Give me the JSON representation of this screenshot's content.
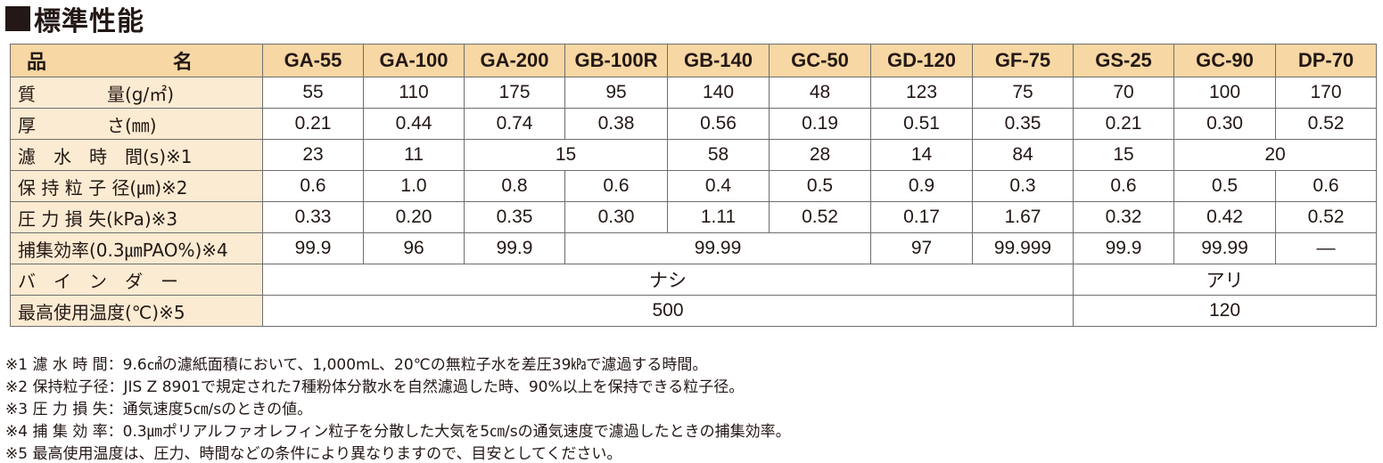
{
  "title": "標準性能",
  "table": {
    "header": {
      "label": "品　名",
      "products": [
        "GA-55",
        "GA-100",
        "GA-200",
        "GB-100R",
        "GB-140",
        "GC-50",
        "GD-120",
        "GF-75",
        "GS-25",
        "GC-90",
        "DP-70"
      ]
    },
    "rows": {
      "mass": {
        "label": "質　　　　量(g/㎡)",
        "cells": [
          "55",
          "110",
          "175",
          "95",
          "140",
          "48",
          "123",
          "75",
          "70",
          "100",
          "170"
        ]
      },
      "thickness": {
        "label": "厚　　　　さ(㎜)",
        "cells": [
          "0.21",
          "0.44",
          "0.74",
          "0.38",
          "0.56",
          "0.19",
          "0.51",
          "0.35",
          "0.21",
          "0.30",
          "0.52"
        ]
      },
      "filtration_time": {
        "label": "濾　水　時　間(s)※1",
        "cells": [
          "23",
          "11",
          "15",
          "58",
          "28",
          "14",
          "84",
          "15",
          "20"
        ]
      },
      "retention": {
        "label": "保 持 粒 子 径(㎛)※2",
        "cells": [
          "0.6",
          "1.0",
          "0.8",
          "0.6",
          "0.4",
          "0.5",
          "0.9",
          "0.3",
          "0.6",
          "0.5",
          "0.6"
        ]
      },
      "pressure_loss": {
        "label": "圧 力 損 失(kPa)※3",
        "cells": [
          "0.33",
          "0.20",
          "0.35",
          "0.30",
          "1.11",
          "0.52",
          "0.17",
          "1.67",
          "0.32",
          "0.42",
          "0.52"
        ]
      },
      "efficiency": {
        "label": "捕集効率(0.3㎛PAO%)※4",
        "cells": [
          "99.9",
          "96",
          "99.9",
          "99.99",
          "97",
          "99.999",
          "99.9",
          "99.99",
          "—"
        ]
      },
      "binder": {
        "label": "バ　イ　ン　ダ　ー",
        "cells": [
          "ナシ",
          "アリ"
        ]
      },
      "max_temp": {
        "label": "最高使用温度(℃)※5",
        "cells": [
          "500",
          "120"
        ]
      }
    }
  },
  "notes": [
    "※1 濾 水 時 間：9.6㎠の濾紙面積において、1,000mL、20℃の無粒子水を差圧39㎪で濾過する時間。",
    "※2 保持粒子径：JIS Z 8901で規定された7種粉体分散水を自然濾過した時、90%以上を保持できる粒子径。",
    "※3 圧 力 損 失：通気速度5㎝/sのときの値。",
    "※4 捕 集 効 率：0.3㎛ポリアルファオレフィン粒子を分散した大気を5㎝/sの通気速度で濾過したときの捕集効率。",
    "※5 最高使用温度は、圧力、時間などの条件により異なりますので、目安としてください。"
  ],
  "colors": {
    "header_bg": "#f7d7a3",
    "label_bg": "#fbebd2",
    "border": "#6e6e6e",
    "text": "#231815"
  }
}
